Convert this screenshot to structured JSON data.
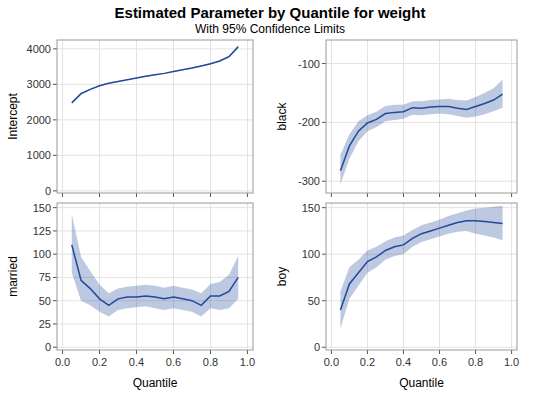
{
  "title": "Estimated Parameter by Quantile for weight",
  "subtitle": "With 95% Confidence Limits",
  "chart_data": [
    {
      "type": "line",
      "y_label": "Intercept",
      "color": "#23489c",
      "grid": true,
      "tick_labels": "y",
      "x": [
        0.05,
        0.1,
        0.15,
        0.2,
        0.25,
        0.3,
        0.35,
        0.4,
        0.45,
        0.5,
        0.55,
        0.6,
        0.65,
        0.7,
        0.75,
        0.8,
        0.85,
        0.9,
        0.95
      ],
      "values": [
        2480,
        2740,
        2860,
        2960,
        3030,
        3080,
        3130,
        3180,
        3230,
        3270,
        3310,
        3360,
        3410,
        3460,
        3520,
        3580,
        3660,
        3780,
        4060
      ],
      "lower": [
        2440,
        2710,
        2840,
        2945,
        3015,
        3068,
        3120,
        3170,
        3220,
        3260,
        3300,
        3350,
        3398,
        3446,
        3505,
        3562,
        3638,
        3750,
        4010
      ],
      "upper": [
        2520,
        2770,
        2880,
        2975,
        3045,
        3092,
        3140,
        3190,
        3240,
        3280,
        3320,
        3370,
        3422,
        3474,
        3535,
        3598,
        3682,
        3810,
        4110
      ],
      "xlim": [
        -0.03,
        1.03
      ],
      "xticks": [
        {
          "value": 0,
          "label": "0.0"
        },
        0.2,
        0.4,
        0.6,
        0.8,
        {
          "value": 1,
          "label": "1.0"
        }
      ],
      "ylim": [
        -60,
        4250
      ],
      "yticks": [
        0,
        1000,
        2000,
        3000,
        4000
      ]
    },
    {
      "type": "line",
      "y_label": "black",
      "color": "#23489c",
      "grid": true,
      "tick_labels": "y",
      "x": [
        0.05,
        0.1,
        0.15,
        0.2,
        0.25,
        0.3,
        0.35,
        0.4,
        0.45,
        0.5,
        0.55,
        0.6,
        0.65,
        0.7,
        0.75,
        0.8,
        0.85,
        0.9,
        0.95
      ],
      "values": [
        -282,
        -240,
        -215,
        -201,
        -195,
        -185,
        -183,
        -182,
        -175,
        -176,
        -174,
        -173,
        -173,
        -176,
        -178,
        -173,
        -168,
        -162,
        -152
      ],
      "lower": [
        -305,
        -262,
        -232,
        -215,
        -208,
        -198,
        -196,
        -194,
        -187,
        -188,
        -186,
        -185,
        -186,
        -189,
        -192,
        -190,
        -186,
        -181,
        -175
      ],
      "upper": [
        -255,
        -220,
        -198,
        -188,
        -182,
        -172,
        -170,
        -170,
        -164,
        -164,
        -162,
        -161,
        -160,
        -162,
        -163,
        -157,
        -150,
        -142,
        -127
      ],
      "xlim": [
        -0.03,
        1.03
      ],
      "xticks": [
        {
          "value": 0,
          "label": "0.0"
        },
        0.2,
        0.4,
        0.6,
        0.8,
        {
          "value": 1,
          "label": "1.0"
        }
      ],
      "ylim": [
        -320,
        -60
      ],
      "yticks": [
        -300,
        -200,
        -100
      ]
    },
    {
      "type": "line",
      "y_label": "married",
      "x_label": "Quantile",
      "color": "#23489c",
      "grid": true,
      "x": [
        0.05,
        0.1,
        0.15,
        0.2,
        0.25,
        0.3,
        0.35,
        0.4,
        0.45,
        0.5,
        0.55,
        0.6,
        0.65,
        0.7,
        0.75,
        0.8,
        0.85,
        0.9,
        0.95
      ],
      "values": [
        110,
        72,
        63,
        52,
        45,
        52,
        54,
        54,
        55,
        54,
        52,
        54,
        52,
        50,
        45,
        55,
        55,
        60,
        75
      ],
      "lower": [
        80,
        50,
        45,
        38,
        33,
        40,
        42,
        43,
        44,
        42,
        40,
        42,
        40,
        38,
        33,
        42,
        40,
        42,
        52
      ],
      "upper": [
        143,
        97,
        82,
        67,
        58,
        63,
        65,
        66,
        67,
        66,
        64,
        66,
        64,
        62,
        58,
        68,
        70,
        78,
        98
      ],
      "xlim": [
        -0.03,
        1.03
      ],
      "xticks": [
        {
          "value": 0,
          "label": "0.0"
        },
        0.2,
        0.4,
        0.6,
        0.8,
        {
          "value": 1,
          "label": "1.0"
        }
      ],
      "ylim": [
        -3,
        155
      ],
      "yticks": [
        0,
        25,
        50,
        75,
        100,
        125,
        150
      ]
    },
    {
      "type": "line",
      "y_label": "boy",
      "x_label": "Quantile",
      "color": "#23489c",
      "grid": true,
      "x": [
        0.05,
        0.1,
        0.15,
        0.2,
        0.25,
        0.3,
        0.35,
        0.4,
        0.45,
        0.5,
        0.55,
        0.6,
        0.65,
        0.7,
        0.75,
        0.8,
        0.85,
        0.9,
        0.95
      ],
      "values": [
        40,
        68,
        80,
        92,
        97,
        104,
        108,
        110,
        117,
        122,
        125,
        128,
        131,
        134,
        136,
        136,
        135,
        134,
        133
      ],
      "lower": [
        20,
        52,
        66,
        80,
        86,
        94,
        98,
        100,
        108,
        113,
        116,
        119,
        122,
        124,
        125,
        122,
        120,
        118,
        115
      ],
      "upper": [
        60,
        86,
        94,
        104,
        108,
        114,
        118,
        120,
        126,
        131,
        134,
        137,
        141,
        144,
        147,
        149,
        150,
        151,
        152
      ],
      "xlim": [
        -0.03,
        1.03
      ],
      "xticks": [
        {
          "value": 0,
          "label": "0.0"
        },
        0.2,
        0.4,
        0.6,
        0.8,
        {
          "value": 1,
          "label": "1.0"
        }
      ],
      "ylim": [
        -3,
        155
      ],
      "yticks": [
        0,
        50,
        100,
        150
      ]
    }
  ]
}
